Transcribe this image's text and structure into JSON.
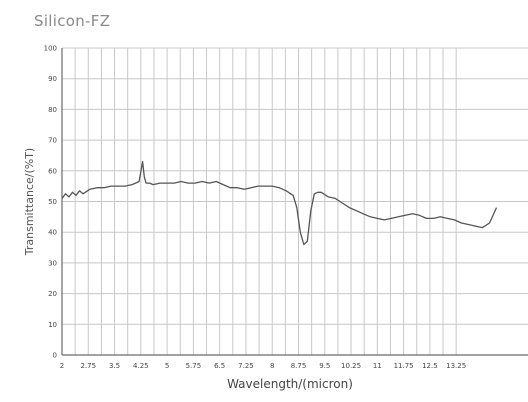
{
  "title": "Silicon-FZ",
  "chart_data": {
    "type": "line",
    "title": "Silicon-FZ",
    "xlabel": "Wavelength/(micron)",
    "ylabel": "Transmittance/(%T)",
    "xlim": [
      2,
      15.3
    ],
    "ylim": [
      0,
      100
    ],
    "grid": true,
    "x_tick_values": [
      2,
      2.75,
      3.5,
      4.25,
      5,
      5.75,
      6.5,
      7.25,
      8,
      8.75,
      9.5,
      10.25,
      11,
      11.75,
      12.5,
      13.25
    ],
    "x_tick_labels": [
      "2",
      "2.75",
      "3.5",
      "4.25",
      "5",
      "5.75",
      "6.5",
      "7.25",
      "8",
      "8.75",
      "9.5",
      "10.25",
      "11",
      "11.75",
      "12.5",
      "13.25"
    ],
    "y_tick_values": [
      0,
      10,
      20,
      30,
      40,
      50,
      60,
      70,
      80,
      90,
      100
    ],
    "y_tick_labels": [
      "0",
      "10",
      "20",
      "30",
      "40",
      "50",
      "60",
      "70",
      "80",
      "90",
      "100"
    ],
    "series": [
      {
        "color": "#555555",
        "x": [
          2.0,
          2.1,
          2.2,
          2.3,
          2.4,
          2.5,
          2.6,
          2.8,
          3.0,
          3.2,
          3.4,
          3.6,
          3.8,
          4.0,
          4.1,
          4.2,
          4.3,
          4.35,
          4.4,
          4.5,
          4.6,
          4.8,
          5.0,
          5.2,
          5.4,
          5.6,
          5.8,
          6.0,
          6.2,
          6.4,
          6.6,
          6.8,
          7.0,
          7.2,
          7.4,
          7.6,
          7.8,
          8.0,
          8.2,
          8.4,
          8.6,
          8.7,
          8.8,
          8.9,
          9.0,
          9.1,
          9.2,
          9.3,
          9.4,
          9.6,
          9.8,
          10.0,
          10.2,
          10.4,
          10.6,
          10.8,
          11.0,
          11.2,
          11.4,
          11.6,
          11.8,
          12.0,
          12.2,
          12.4,
          12.6,
          12.8,
          13.0,
          13.2,
          13.4,
          13.6,
          13.8,
          14.0,
          14.2,
          14.4
        ],
        "y": [
          51.0,
          52.5,
          51.5,
          53.0,
          52.0,
          53.5,
          52.5,
          54.0,
          54.5,
          54.5,
          55.0,
          55.0,
          55.0,
          55.5,
          56.0,
          56.5,
          63.0,
          58.0,
          56.0,
          56.0,
          55.5,
          56.0,
          56.0,
          56.0,
          56.5,
          56.0,
          56.0,
          56.5,
          56.0,
          56.5,
          55.5,
          54.5,
          54.5,
          54.0,
          54.5,
          55.0,
          55.0,
          55.0,
          54.5,
          53.5,
          52.0,
          48.0,
          40.0,
          36.0,
          37.0,
          47.0,
          52.5,
          53.0,
          53.0,
          51.5,
          51.0,
          49.5,
          48.0,
          47.0,
          46.0,
          45.0,
          44.5,
          44.0,
          44.5,
          45.0,
          45.5,
          46.0,
          45.5,
          44.5,
          44.5,
          45.0,
          44.5,
          44.0,
          43.0,
          42.5,
          42.0,
          41.5,
          43.0,
          48.0
        ]
      }
    ]
  }
}
